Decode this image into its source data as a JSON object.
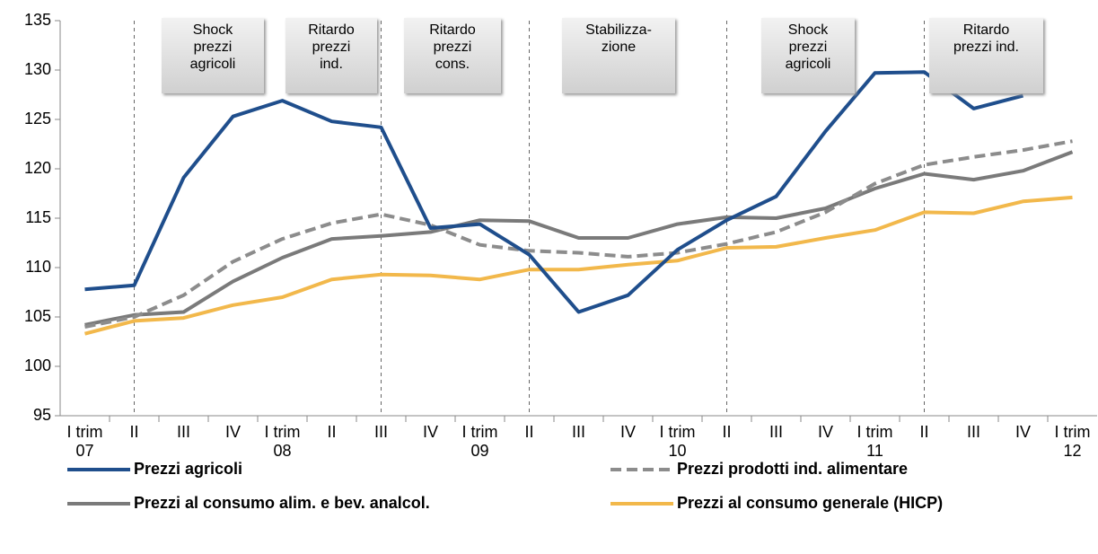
{
  "chart_data": {
    "type": "line",
    "categories": [
      "I trim 07",
      "II",
      "III",
      "IV",
      "I trim 08",
      "II",
      "III",
      "IV",
      "I trim 09",
      "II",
      "III",
      "IV",
      "I trim 10",
      "II",
      "III",
      "IV",
      "I trim 11",
      "II",
      "III",
      "IV",
      "I trim 12"
    ],
    "series": [
      {
        "name": "Prezzi agricoli",
        "color": "#1f4e8c",
        "dash": false,
        "values": [
          107.8,
          108.2,
          119.1,
          125.3,
          126.9,
          124.8,
          124.2,
          114.0,
          114.4,
          111.3,
          105.5,
          107.2,
          111.8,
          114.8,
          117.2,
          123.8,
          129.7,
          129.8,
          126.1,
          127.4,
          null
        ]
      },
      {
        "name": "Prezzi prodotti ind. alimentare",
        "color": "#8c8c8c",
        "dash": true,
        "values": [
          104.0,
          105.0,
          107.2,
          110.6,
          112.9,
          114.5,
          115.4,
          114.3,
          112.3,
          111.7,
          111.5,
          111.1,
          111.5,
          112.4,
          113.6,
          115.6,
          118.5,
          120.4,
          121.2,
          121.9,
          122.8
        ]
      },
      {
        "name": "Prezzi al consumo alim. e bev. analcol.",
        "color": "#7a7a7a",
        "dash": false,
        "values": [
          104.2,
          105.2,
          105.5,
          108.6,
          111.0,
          112.9,
          113.2,
          113.6,
          114.8,
          114.7,
          113.0,
          113.0,
          114.4,
          115.1,
          115.0,
          116.0,
          118.0,
          119.5,
          118.9,
          119.8,
          121.7
        ]
      },
      {
        "name": "Prezzi al consumo generale (HICP)",
        "color": "#f2b84b",
        "dash": false,
        "values": [
          103.3,
          104.6,
          104.9,
          106.2,
          107.0,
          108.8,
          109.3,
          109.2,
          108.8,
          109.8,
          109.8,
          110.3,
          110.7,
          112.0,
          112.1,
          113.0,
          113.8,
          115.6,
          115.5,
          116.7,
          117.1
        ]
      }
    ],
    "ylim": [
      95,
      135
    ],
    "yticks": [
      95,
      100,
      105,
      110,
      115,
      120,
      125,
      130,
      135
    ],
    "grid": false,
    "annotations": [
      "Shock\nprezzi\nagricoli",
      "Ritardo\nprezzi\nind.",
      "Ritardo\nprezzi\ncons.",
      "Stabilizza-\nzione",
      "Shock\nprezzi\nagricoli",
      "Ritardo\nprezzi ind."
    ]
  }
}
